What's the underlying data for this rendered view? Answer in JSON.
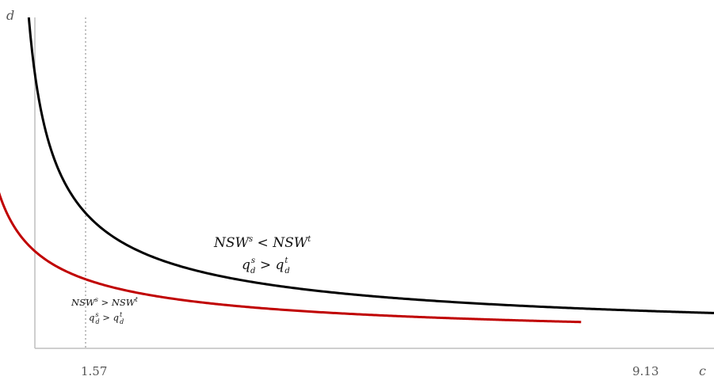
{
  "chart_data": {
    "type": "line",
    "xlabel": "c",
    "ylabel": "d",
    "xticks": [
      "1.57",
      "9.13"
    ],
    "reference_line_x": 1.57,
    "xlim": [
      0,
      9.13
    ],
    "colors": {
      "red_curve": "#c00000",
      "black_curve": "#000000",
      "axis": "#bfbfbf",
      "reference": "#808080"
    },
    "series": [
      {
        "color": "#c00000",
        "x": [
          0.12,
          0.2,
          0.35,
          0.6,
          1.0,
          1.57,
          2.5,
          4.0,
          6.0,
          8.2
        ],
        "y": [
          100.0,
          60.0,
          34.3,
          20.0,
          12.0,
          7.64,
          4.8,
          3.0,
          2.0,
          1.46
        ]
      },
      {
        "color": "#000000",
        "x": [
          0.8,
          1.2,
          1.6,
          2.0,
          2.5,
          3.5,
          5.0,
          7.0,
          9.13
        ],
        "y": [
          100.0,
          43.0,
          25.0,
          17.0,
          12.5,
          8.3,
          5.6,
          3.9,
          2.9
        ]
      }
    ],
    "annotations": {
      "upper": {
        "line1": {
          "lhs": "NSW",
          "lhs_sup": "s",
          "op": "<",
          "rhs": "NSW",
          "rhs_sup": "t"
        },
        "line2": {
          "lhs": "q",
          "lhs_sup": "s",
          "lhs_sub": "d",
          "op": ">",
          "rhs": "q",
          "rhs_sup": "t",
          "rhs_sub": "d"
        }
      },
      "lower": {
        "line1": {
          "lhs": "NSW",
          "lhs_sup": "s",
          "op": ">",
          "rhs": "NSW",
          "rhs_sup": "t"
        },
        "line2": {
          "lhs": "q",
          "lhs_sup": "s",
          "lhs_sub": "d",
          "op": ">",
          "rhs": "q",
          "rhs_sup": "t",
          "rhs_sub": "d"
        }
      }
    }
  }
}
